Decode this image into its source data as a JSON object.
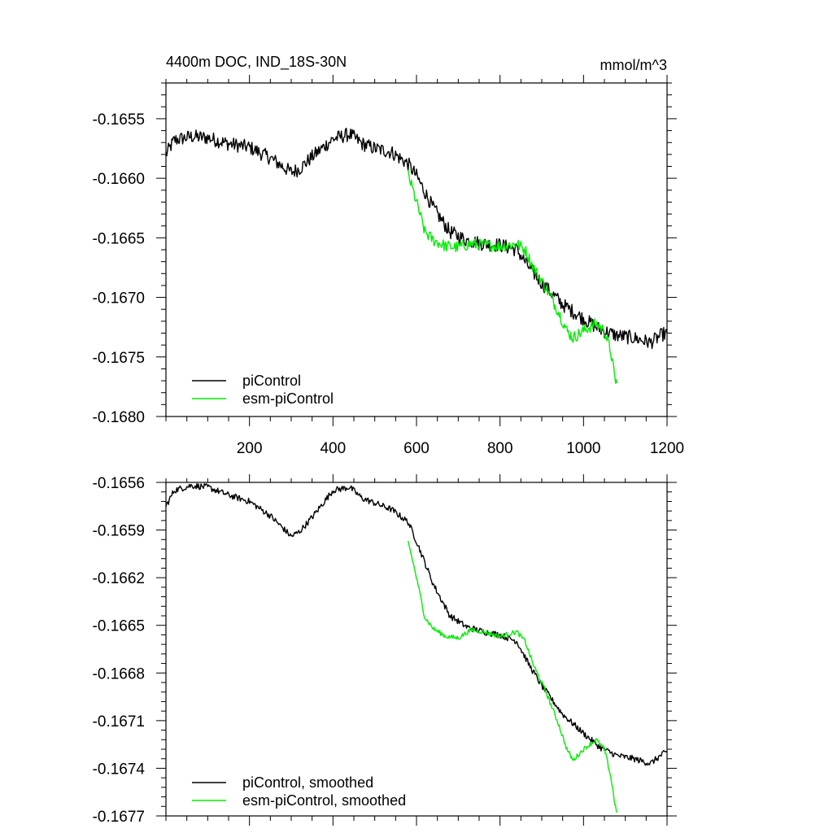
{
  "colors": {
    "picontrol": "#000000",
    "esm_picontrol": "#00ee00",
    "frame": "#000000"
  },
  "chart_data": [
    {
      "type": "line",
      "title": "4400m DOC, IND_18S-30N",
      "units": "mmol/m^3",
      "xlim": [
        0,
        1200
      ],
      "ylim": [
        -0.168,
        -0.1652
      ],
      "xticks": [
        200,
        400,
        600,
        800,
        1000,
        1200
      ],
      "xtick_labels": [
        "200",
        "400",
        "600",
        "800",
        "1000",
        "1200"
      ],
      "yticks": [
        -0.1655,
        -0.166,
        -0.1665,
        -0.167,
        -0.1675,
        -0.168
      ],
      "ytick_labels": [
        "-0.1655",
        "-0.1660",
        "-0.1665",
        "-0.1670",
        "-0.1675",
        "-0.1680"
      ],
      "legend_position": "bottom-left",
      "series": [
        {
          "name": "piControl",
          "color": "#000000",
          "noise": 6e-05,
          "x": [
            0,
            20,
            60,
            100,
            150,
            200,
            250,
            300,
            320,
            350,
            400,
            440,
            470,
            500,
            540,
            580,
            600,
            640,
            680,
            720,
            760,
            800,
            840,
            870,
            900,
            950,
            1000,
            1040,
            1080,
            1120,
            1160,
            1190,
            1200
          ],
          "y": [
            -0.1658,
            -0.16568,
            -0.16565,
            -0.16566,
            -0.16571,
            -0.16574,
            -0.16583,
            -0.16595,
            -0.16592,
            -0.16582,
            -0.16567,
            -0.16563,
            -0.16571,
            -0.16575,
            -0.16578,
            -0.16588,
            -0.16598,
            -0.16625,
            -0.16645,
            -0.16652,
            -0.16655,
            -0.16656,
            -0.1666,
            -0.16675,
            -0.16688,
            -0.16706,
            -0.16718,
            -0.16727,
            -0.16732,
            -0.16734,
            -0.16738,
            -0.16731,
            -0.1673
          ]
        },
        {
          "name": "esm-piControl",
          "color": "#00ee00",
          "noise": 5e-05,
          "x": [
            580,
            600,
            620,
            640,
            670,
            700,
            730,
            760,
            800,
            840,
            860,
            880,
            910,
            940,
            960,
            975,
            1000,
            1030,
            1050,
            1065,
            1075,
            1080
          ],
          "y": [
            -0.16597,
            -0.1662,
            -0.16645,
            -0.16652,
            -0.16657,
            -0.16658,
            -0.16655,
            -0.16656,
            -0.16657,
            -0.16655,
            -0.1666,
            -0.16675,
            -0.16692,
            -0.16712,
            -0.16728,
            -0.16734,
            -0.16728,
            -0.16722,
            -0.16728,
            -0.16745,
            -0.16768,
            -0.16772
          ]
        }
      ]
    },
    {
      "type": "line",
      "xlim": [
        0,
        1200
      ],
      "ylim": [
        -0.1677,
        -0.1656
      ],
      "xticks": [
        200,
        400,
        600,
        800,
        1000,
        1200
      ],
      "yticks": [
        -0.1656,
        -0.1659,
        -0.1662,
        -0.1665,
        -0.1668,
        -0.1671,
        -0.1674,
        -0.1677
      ],
      "ytick_labels": [
        "-0.1656",
        "-0.1659",
        "-0.1662",
        "-0.1665",
        "-0.1668",
        "-0.1671",
        "-0.1674",
        "-0.1677"
      ],
      "legend_position": "bottom-left",
      "series": [
        {
          "name": "piControl, smoothed",
          "color": "#000000",
          "noise": 2e-05,
          "x": [
            0,
            20,
            60,
            100,
            150,
            200,
            250,
            300,
            320,
            350,
            400,
            440,
            470,
            500,
            540,
            580,
            600,
            640,
            680,
            720,
            760,
            800,
            840,
            870,
            900,
            950,
            1000,
            1040,
            1080,
            1120,
            1160,
            1190,
            1200
          ],
          "y": [
            -0.16575,
            -0.16565,
            -0.16562,
            -0.16563,
            -0.16568,
            -0.16572,
            -0.16581,
            -0.16594,
            -0.16591,
            -0.16582,
            -0.16565,
            -0.16563,
            -0.1657,
            -0.16573,
            -0.16577,
            -0.16585,
            -0.16597,
            -0.16624,
            -0.16644,
            -0.16651,
            -0.16654,
            -0.16656,
            -0.1666,
            -0.16675,
            -0.16688,
            -0.16706,
            -0.16718,
            -0.16727,
            -0.16732,
            -0.16734,
            -0.16737,
            -0.16731,
            -0.1673
          ]
        },
        {
          "name": "esm-piControl, smoothed",
          "color": "#00ee00",
          "noise": 1.5e-05,
          "x": [
            580,
            600,
            620,
            640,
            670,
            700,
            730,
            760,
            800,
            840,
            860,
            880,
            910,
            940,
            960,
            975,
            1000,
            1030,
            1050,
            1065,
            1075,
            1080
          ],
          "y": [
            -0.16597,
            -0.1662,
            -0.16645,
            -0.16652,
            -0.16657,
            -0.16658,
            -0.16653,
            -0.16654,
            -0.16657,
            -0.16654,
            -0.1666,
            -0.16675,
            -0.16692,
            -0.16712,
            -0.16728,
            -0.16735,
            -0.16728,
            -0.16722,
            -0.16728,
            -0.16745,
            -0.16762,
            -0.16768
          ]
        }
      ]
    }
  ]
}
